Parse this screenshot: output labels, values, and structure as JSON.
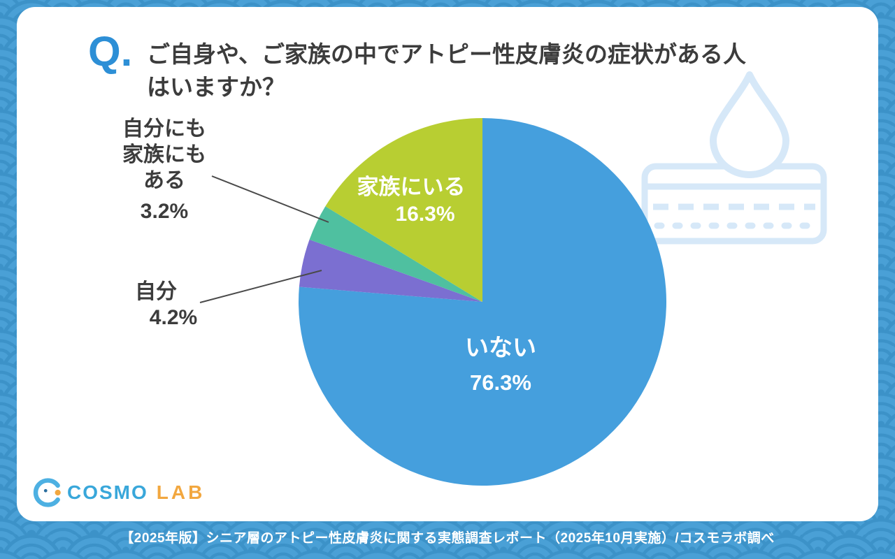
{
  "question": {
    "prefix": "Q.",
    "line1": "ご自身や、ご家族の中でアトピー性皮膚炎の症状がある人",
    "line2": "はいますか？"
  },
  "chart_data": {
    "type": "pie",
    "title": "ご自身や、ご家族の中でアトピー性皮膚炎の症状がある人はいますか？",
    "start_angle_deg": 0,
    "direction": "clockwise",
    "segments": [
      {
        "id": "none",
        "label": "いない",
        "value": 76.3,
        "color": "#459fdd"
      },
      {
        "id": "self",
        "label": "自分",
        "value": 4.2,
        "color": "#7b6fd1"
      },
      {
        "id": "self-and-family",
        "label": "自分にも家族にもある",
        "value": 3.2,
        "color": "#4fc0a0"
      },
      {
        "id": "family",
        "label": "家族にいる",
        "value": 16.3,
        "color": "#b8ce32"
      }
    ]
  },
  "callouts": {
    "none": {
      "pct": "76.3%"
    },
    "family": {
      "pct": "16.3%"
    },
    "self": {
      "pct": "4.2%"
    },
    "both": {
      "lines": [
        "自分にも",
        "家族にも",
        "ある"
      ],
      "pct": "3.2%"
    }
  },
  "logo": {
    "cosmo": "COSMO",
    "lab": "LAB"
  },
  "footer": "【2025年版】シニア層のアトピー性皮膚炎に関する実態調査レポート（2025年10月実施）/コスモラボ調べ",
  "colors": {
    "background_blue": "#4aa0d6",
    "background_wave_line": "#3c92c8",
    "accent_blue": "#2d8fd6",
    "logo_blue": "#39a7da",
    "logo_orange": "#f2a73f",
    "watermark_blue": "#d6e8f8",
    "text_dark": "#3c3c3c"
  }
}
